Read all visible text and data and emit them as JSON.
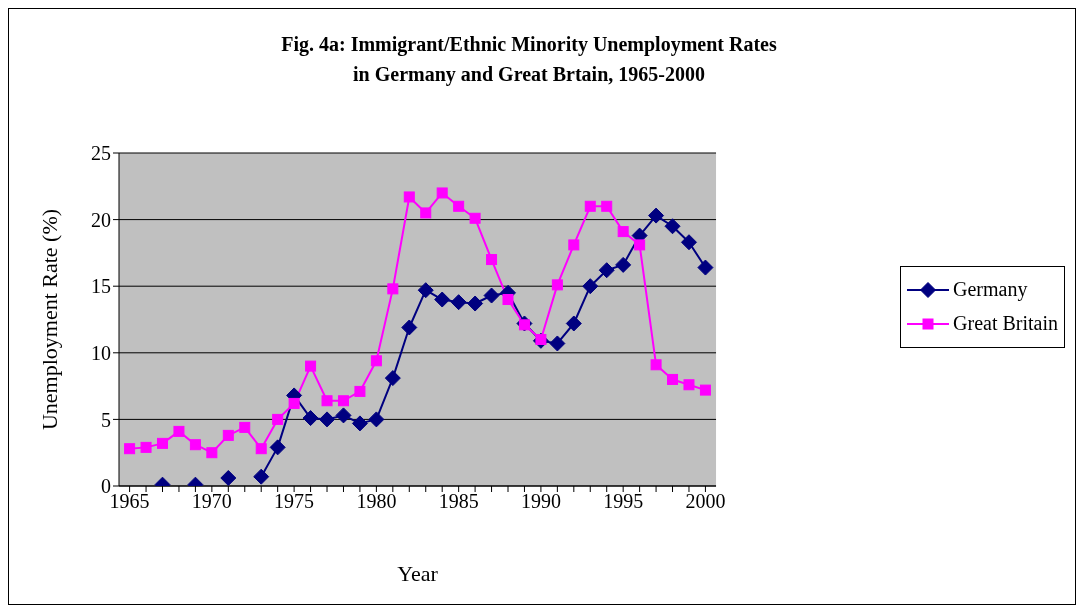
{
  "chart_data": {
    "type": "line",
    "title": "Fig. 4a: Immigrant/Ethnic Minority Unemployment Rates\nin Germany and Great Brtain, 1965-2000",
    "xlabel": "Year",
    "ylabel": "Unemployment Rate (%)",
    "categories": [
      "1965",
      null,
      null,
      null,
      null,
      "1970",
      null,
      null,
      null,
      null,
      "1975",
      null,
      null,
      null,
      null,
      "1980",
      null,
      null,
      null,
      null,
      "1985",
      null,
      null,
      null,
      null,
      "1990",
      null,
      null,
      null,
      null,
      "1995",
      null,
      null,
      null,
      null,
      "2000"
    ],
    "series": [
      {
        "name": "Germany",
        "color": "#000080",
        "marker": "diamond",
        "values": [
          null,
          null,
          0.1,
          null,
          0.1,
          null,
          0.6,
          null,
          0.7,
          2.9,
          6.8,
          5.1,
          5.0,
          5.3,
          4.7,
          5.0,
          8.1,
          11.9,
          14.7,
          14.0,
          13.8,
          13.7,
          14.3,
          14.5,
          12.2,
          10.9,
          10.7,
          12.2,
          15.0,
          16.2,
          16.6,
          18.8,
          20.3,
          19.5,
          18.3,
          16.4
        ]
      },
      {
        "name": "Great Britain",
        "color": "#ff00ff",
        "marker": "square",
        "values": [
          2.8,
          2.9,
          3.2,
          4.1,
          3.1,
          2.5,
          3.8,
          4.4,
          2.8,
          5.0,
          6.2,
          9.0,
          6.4,
          6.4,
          7.1,
          9.4,
          14.8,
          21.7,
          20.5,
          22.0,
          21.0,
          20.1,
          17.0,
          14.0,
          12.1,
          11.0,
          15.1,
          18.1,
          21.0,
          21.0,
          19.1,
          18.1,
          9.1,
          8.0,
          7.6,
          7.2
        ]
      }
    ],
    "ylim": [
      0,
      25
    ],
    "yticks": [
      0,
      5,
      10,
      15,
      20,
      25
    ],
    "grid": "y",
    "legend": "right",
    "line_style": "solid"
  }
}
